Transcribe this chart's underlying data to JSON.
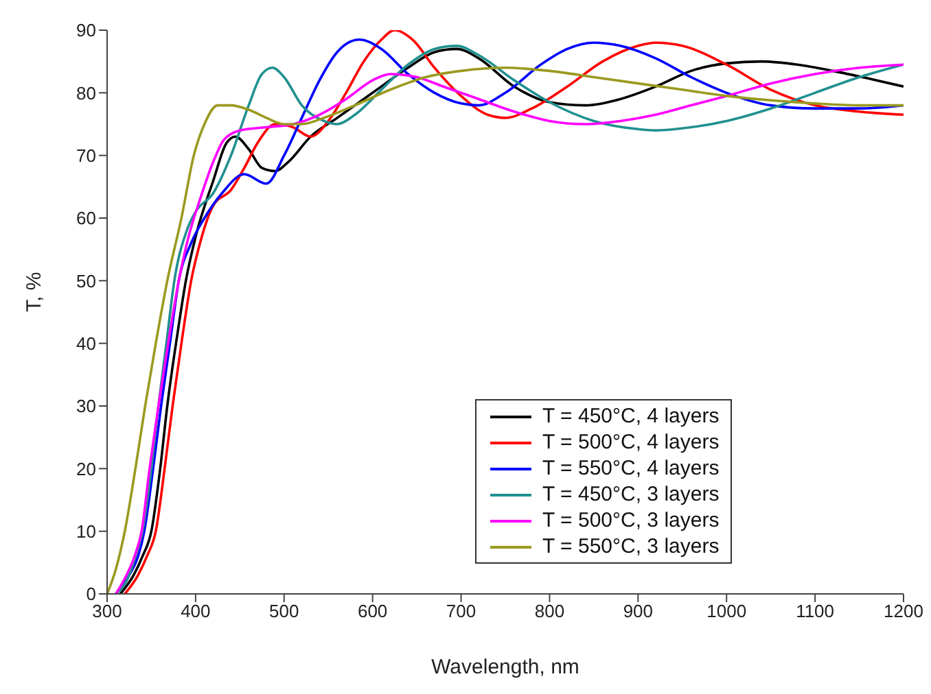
{
  "chart_data": {
    "type": "line",
    "xlabel": "Wavelength, nm",
    "ylabel": "T, %",
    "xlim": [
      300,
      1200
    ],
    "xticks": [
      300,
      400,
      500,
      600,
      700,
      800,
      900,
      1000,
      1100,
      1200
    ],
    "ylim": [
      0,
      90
    ],
    "yticks": [
      0,
      10,
      20,
      30,
      40,
      50,
      60,
      70,
      80,
      90
    ],
    "grid": false,
    "legend": "right",
    "marker": "none",
    "line_style": "solid",
    "series": [
      {
        "name": "T = 450°C, 4 layers",
        "color": "#000000",
        "x": [
          315,
          330,
          340,
          350,
          360,
          368,
          380,
          389,
          400,
          420,
          435,
          445,
          460,
          475,
          490,
          505,
          530,
          560,
          600,
          640,
          670,
          695,
          720,
          760,
          800,
          840,
          880,
          920,
          960,
          1000,
          1040,
          1080,
          1120,
          1160,
          1200
        ],
        "values": [
          0,
          3,
          6,
          10,
          20,
          30,
          42,
          50,
          57,
          66,
          72,
          73,
          71,
          68,
          67.5,
          69,
          73,
          76,
          80,
          84,
          86.5,
          87,
          85.5,
          81,
          78.5,
          78,
          79,
          81,
          83.5,
          84.7,
          85,
          84.5,
          83.5,
          82.3,
          81
        ]
      },
      {
        "name": "T = 500°C, 4 layers",
        "color": "#ff0000",
        "x": [
          320,
          335,
          345,
          355,
          365,
          374,
          385,
          395,
          405,
          420,
          440,
          455,
          470,
          490,
          510,
          530,
          550,
          570,
          590,
          610,
          625,
          645,
          670,
          700,
          730,
          750,
          780,
          820,
          860,
          900,
          920,
          950,
          1000,
          1050,
          1100,
          1150,
          1200
        ],
        "values": [
          0,
          3,
          6,
          10,
          20,
          30,
          41,
          50,
          56,
          62,
          64.5,
          68,
          72,
          75,
          74.5,
          73,
          75.5,
          80,
          85,
          88.5,
          90,
          88.5,
          84,
          79.5,
          76.5,
          76,
          77.5,
          81,
          85,
          87.5,
          88,
          87.5,
          84.5,
          80.5,
          78,
          77,
          76.5
        ]
      },
      {
        "name": "T = 550°C, 4 layers",
        "color": "#0000ff",
        "x": [
          310,
          325,
          335,
          342,
          352,
          361,
          371,
          381,
          395,
          410,
          430,
          455,
          480,
          500,
          520,
          540,
          560,
          585,
          610,
          640,
          670,
          700,
          720,
          750,
          790,
          820,
          850,
          880,
          920,
          960,
          1000,
          1050,
          1100,
          1150,
          1200
        ],
        "values": [
          0,
          3,
          6,
          10,
          20,
          30,
          40,
          50,
          56,
          60,
          64,
          67,
          65.5,
          70,
          76,
          82,
          86.5,
          88.5,
          87,
          83,
          80,
          78.3,
          78,
          80,
          84.5,
          87,
          88,
          87.5,
          85.5,
          82.5,
          80,
          78,
          77.5,
          77.5,
          78
        ]
      },
      {
        "name": "T = 450°C, 3 layers",
        "color": "#209090",
        "x": [
          310,
          325,
          332,
          340,
          350,
          358,
          367,
          376,
          390,
          400,
          420,
          440,
          460,
          475,
          487,
          500,
          520,
          545,
          560,
          580,
          610,
          640,
          670,
          695,
          720,
          760,
          800,
          850,
          900,
          920,
          960,
          1000,
          1050,
          1100,
          1150,
          1200
        ],
        "values": [
          0,
          3,
          6,
          10,
          20,
          30,
          40,
          50,
          58,
          61,
          64,
          70,
          78,
          83,
          84,
          82.5,
          78,
          75.5,
          75,
          76.5,
          80.5,
          84.5,
          87,
          87.5,
          86,
          82,
          78.5,
          75.5,
          74.2,
          74,
          74.5,
          75.5,
          77.5,
          80,
          82.5,
          84.5
        ]
      },
      {
        "name": "T = 500°C, 3 layers",
        "color": "#ff00ff",
        "x": [
          310,
          322,
          331,
          339,
          348,
          358,
          369,
          381,
          392,
          405,
          420,
          432,
          450,
          480,
          510,
          540,
          570,
          600,
          620,
          650,
          680,
          720,
          760,
          800,
          840,
          880,
          920,
          960,
          1000,
          1050,
          1100,
          1150,
          1200
        ],
        "values": [
          0,
          3,
          6,
          10,
          20,
          30,
          40,
          50,
          57,
          63,
          69,
          72.5,
          74,
          74.5,
          75,
          76.5,
          79,
          82,
          83,
          82.5,
          81,
          79,
          77,
          75.5,
          75,
          75.5,
          76.5,
          78,
          79.5,
          81.5,
          83,
          84,
          84.5
        ]
      },
      {
        "name": "T = 550°C, 3 layers",
        "color": "#9a9a20",
        "x": [
          300,
          310,
          320,
          332,
          343,
          355,
          368,
          384,
          398,
          410,
          425,
          440,
          460,
          480,
          500,
          520,
          545,
          580,
          620,
          660,
          700,
          750,
          800,
          850,
          900,
          950,
          1000,
          1050,
          1100,
          1150,
          1200
        ],
        "values": [
          0,
          4,
          10,
          20,
          30,
          40,
          50,
          60,
          70,
          75,
          78,
          78,
          77.3,
          76,
          75,
          75,
          76,
          78,
          80.5,
          82.5,
          83.5,
          84,
          83.5,
          82.5,
          81.5,
          80.5,
          79.5,
          78.8,
          78.3,
          78,
          78
        ]
      }
    ]
  }
}
